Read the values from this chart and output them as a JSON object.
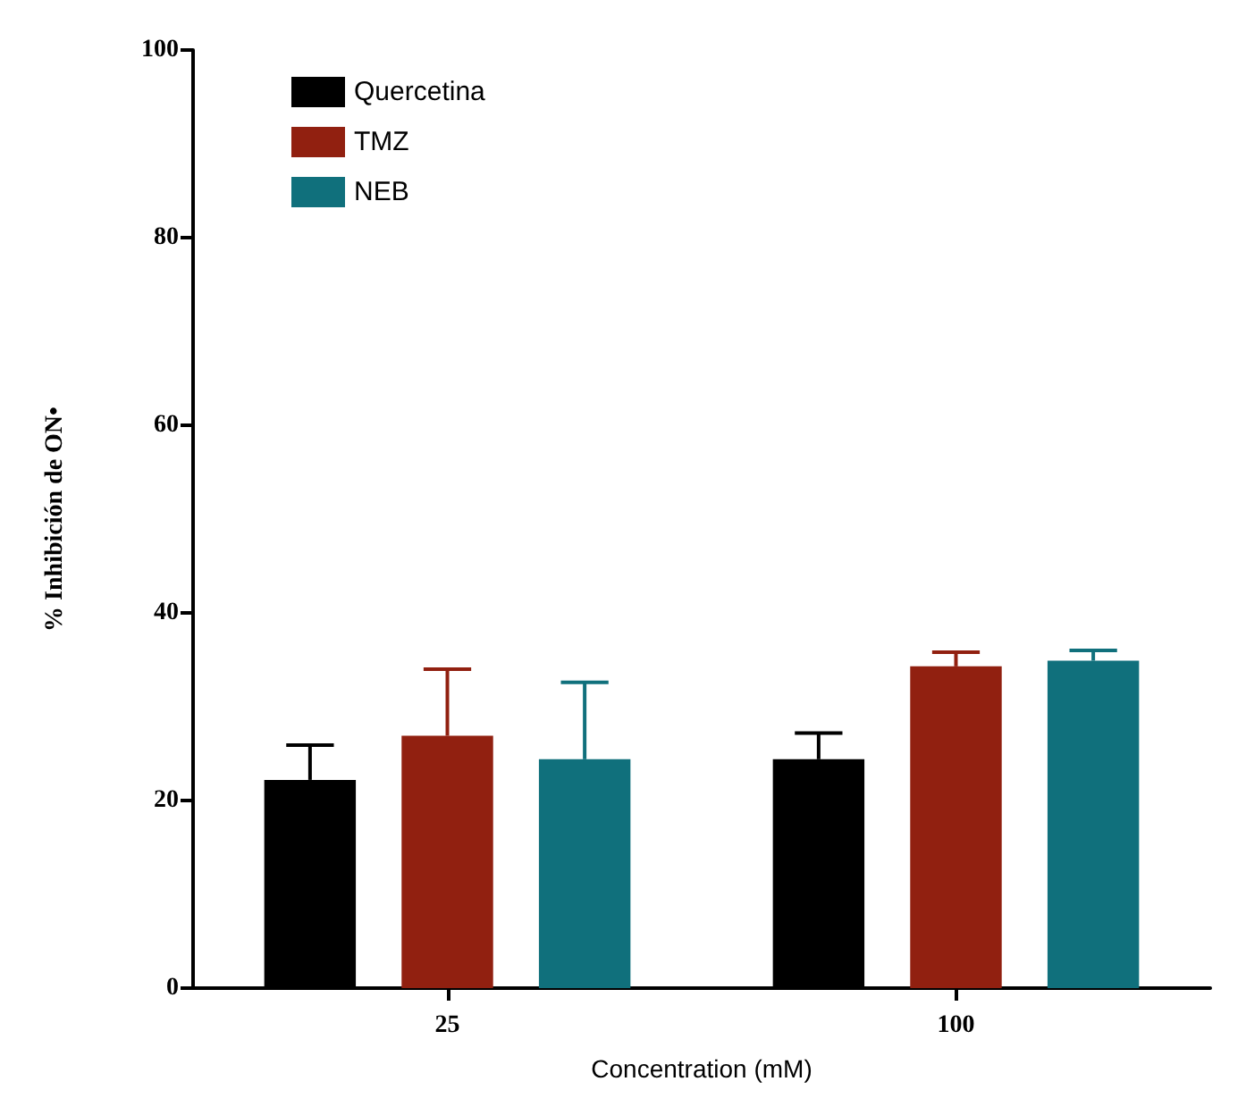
{
  "chart_data": {
    "type": "bar",
    "xlabel": "Concentration (mM)",
    "ylabel": "% Inhibición de ON•",
    "categories": [
      "25",
      "100"
    ],
    "series": [
      {
        "name": "Quercetina",
        "color": "#000000",
        "values": [
          22.2,
          24.4
        ],
        "errors": [
          [
            22.2,
            25.9
          ],
          [
            24.4,
            27.2
          ]
        ]
      },
      {
        "name": "TMZ",
        "color": "#912010",
        "values": [
          26.9,
          34.3
        ],
        "errors": [
          [
            26.9,
            34.0
          ],
          [
            34.3,
            35.8
          ]
        ]
      },
      {
        "name": "NEB",
        "color": "#10707c",
        "values": [
          24.4,
          34.9
        ],
        "errors": [
          [
            24.4,
            32.6
          ],
          [
            34.9,
            36.0
          ]
        ]
      }
    ],
    "ylim": [
      0,
      100
    ],
    "yticks": [
      0,
      20,
      40,
      60,
      80,
      100
    ],
    "grid": false,
    "legend": "top left"
  }
}
